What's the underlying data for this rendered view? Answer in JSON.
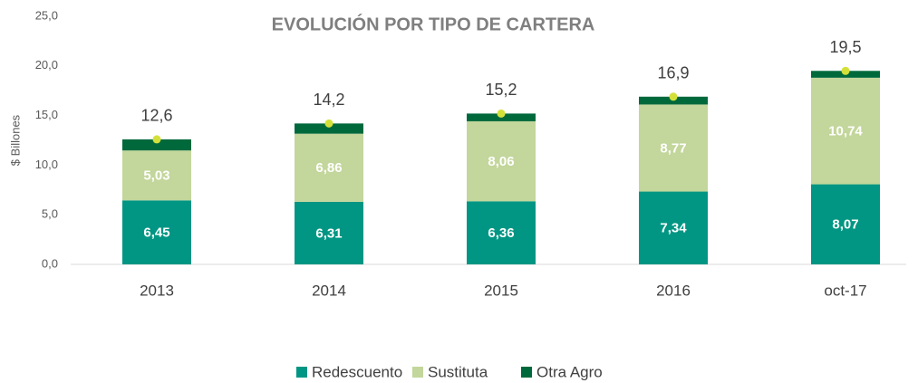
{
  "chart_data": {
    "type": "stacked_bar",
    "title": "EVOLUCIÓN POR TIPO DE CARTERA",
    "y_label": "$ Billones",
    "categories": [
      "2013",
      "2014",
      "2015",
      "2016",
      "oct-17"
    ],
    "series": [
      {
        "name": "Redescuento",
        "color": "#009683",
        "values": [
          6.45,
          6.31,
          6.36,
          7.34,
          8.07
        ],
        "value_labels": [
          "6,45",
          "6,31",
          "6,36",
          "7,34",
          "8,07"
        ]
      },
      {
        "name": "Sustituta",
        "color": "#c3d69b",
        "values": [
          5.03,
          6.86,
          8.06,
          8.77,
          10.74
        ],
        "value_labels": [
          "5,03",
          "6,86",
          "8,06",
          "8,77",
          "10,74"
        ]
      },
      {
        "name": "Otra Agro",
        "color": "#00693c",
        "values": [
          1.12,
          1.03,
          0.78,
          0.79,
          0.69
        ]
      }
    ],
    "totals": {
      "color": "#d4e03a",
      "values": [
        12.6,
        14.2,
        15.2,
        16.9,
        19.5
      ],
      "value_labels": [
        "12,6",
        "14,2",
        "15,2",
        "16,9",
        "19,5"
      ]
    },
    "ylim": [
      0,
      25
    ],
    "yticks": [
      {
        "value": 0,
        "label": "0,0"
      },
      {
        "value": 5,
        "label": "5,0"
      },
      {
        "value": 10,
        "label": "10,0"
      },
      {
        "value": 15,
        "label": "15,0"
      },
      {
        "value": 20,
        "label": "20,0"
      },
      {
        "value": 25,
        "label": "25,0"
      }
    ],
    "legend": "bottom"
  }
}
